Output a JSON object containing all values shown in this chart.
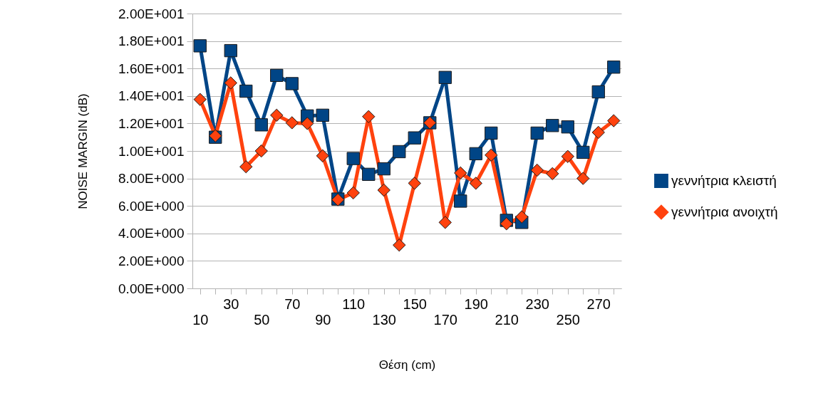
{
  "chart_data": {
    "type": "line",
    "xlabel": "Θέση (cm)",
    "ylabel": "NOISE MARGIN (dB)",
    "categories": [
      "10",
      null,
      "30",
      null,
      "50",
      null,
      "70",
      null,
      "90",
      null,
      "110",
      null,
      "130",
      null,
      "150",
      null,
      "170",
      null,
      "190",
      null,
      "210",
      null,
      "230",
      null,
      "250",
      null,
      "270",
      null
    ],
    "series": [
      {
        "name": "γεννήτρια κλειστή",
        "color": "#004586",
        "marker": "square",
        "values": [
          17.65,
          11.0,
          17.3,
          14.35,
          11.9,
          15.5,
          14.9,
          12.55,
          12.6,
          6.5,
          9.45,
          8.3,
          8.7,
          9.95,
          10.95,
          12.05,
          15.35,
          6.35,
          9.8,
          11.3,
          4.95,
          4.8,
          11.3,
          11.85,
          11.75,
          9.9,
          14.3,
          16.1
        ]
      },
      {
        "name": "γεννήτρια ανοιχτή",
        "color": "#ff420e",
        "marker": "diamond",
        "values": [
          13.75,
          11.1,
          14.95,
          8.85,
          10.0,
          12.6,
          12.05,
          12.0,
          9.65,
          6.45,
          6.95,
          12.5,
          7.15,
          3.15,
          7.65,
          12.05,
          4.8,
          8.4,
          7.65,
          9.7,
          4.7,
          5.2,
          8.6,
          8.35,
          9.6,
          8.0,
          11.35,
          12.2
        ]
      }
    ],
    "ylim": [
      0,
      20
    ],
    "yticks": [
      {
        "value": 0,
        "label": "0.00E+000"
      },
      {
        "value": 2,
        "label": "2.00E+000"
      },
      {
        "value": 4,
        "label": "4.00E+000"
      },
      {
        "value": 6,
        "label": "6.00E+000"
      },
      {
        "value": 8,
        "label": "8.00E+000"
      },
      {
        "value": 10,
        "label": "1.00E+001"
      },
      {
        "value": 12,
        "label": "1.20E+001"
      },
      {
        "value": 14,
        "label": "1.40E+001"
      },
      {
        "value": 16,
        "label": "1.60E+001"
      },
      {
        "value": 18,
        "label": "1.80E+001"
      },
      {
        "value": 20,
        "label": "2.00E+001"
      }
    ],
    "grid": "y",
    "legend": "right"
  }
}
